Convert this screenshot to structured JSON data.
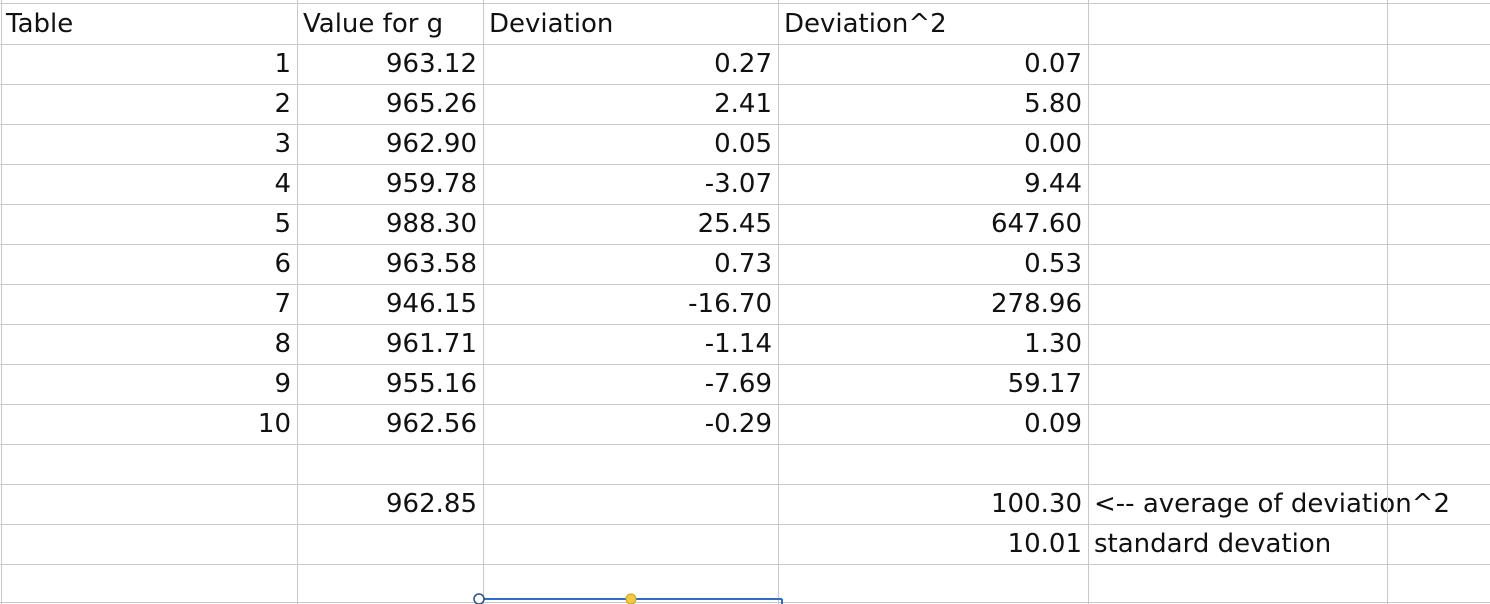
{
  "table": {
    "header": [
      "Table",
      "Value for g",
      "Deviation",
      "Deviation^2"
    ],
    "rows": [
      [
        "1",
        "963.12",
        "0.27",
        "0.07"
      ],
      [
        "2",
        "965.26",
        "2.41",
        "5.80"
      ],
      [
        "3",
        "962.90",
        "0.05",
        "0.00"
      ],
      [
        "4",
        "959.78",
        "-3.07",
        "9.44"
      ],
      [
        "5",
        "988.30",
        "25.45",
        "647.60"
      ],
      [
        "6",
        "963.58",
        "0.73",
        "0.53"
      ],
      [
        "7",
        "946.15",
        "-16.70",
        "278.96"
      ],
      [
        "8",
        "961.71",
        "-1.14",
        "1.30"
      ],
      [
        "9",
        "955.16",
        "-7.69",
        "59.17"
      ],
      [
        "10",
        "962.56",
        "-0.29",
        "0.09"
      ]
    ],
    "summary": {
      "mean_g": "962.85",
      "avg_dev_sq": "100.30",
      "avg_dev_sq_label": "<-- average of deviation^2",
      "std_dev": "10.01",
      "std_dev_label": "standard devation"
    }
  }
}
